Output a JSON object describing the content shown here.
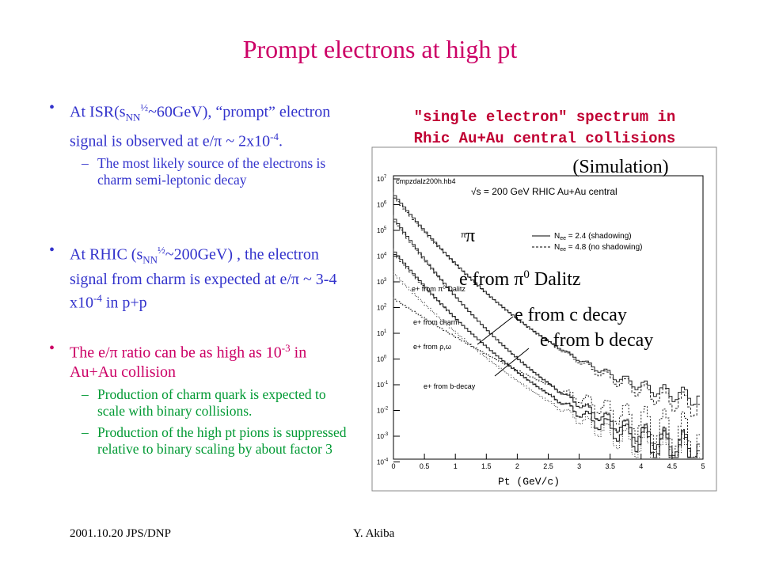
{
  "header": {
    "title": "Prompt electrons at high pt"
  },
  "bullets": [
    {
      "text": [
        "At ISR(s",
        "NN",
        "½",
        "~60GeV), “prompt” electron signal is observed at e/π ~ 2x10",
        "-4",
        "."
      ],
      "sub": [
        "The most likely source of the electrons is charm semi-leptonic decay"
      ]
    },
    {
      "text": [
        "At RHIC (s",
        "NN",
        "½",
        "~200GeV) , the electron signal from charm is expected at e/π ~ 3-4 x10",
        "-4",
        " in p+p"
      ]
    },
    {
      "text": [
        "The e/π ratio can be as high as 10",
        "-3",
        " in Au+Au collision"
      ],
      "sub": [
        "Production of charm quark is expected to scale with binary collisions.",
        "Production of the high pt pions is suppressed relative to  binary scaling by about factor 3"
      ]
    }
  ],
  "figure": {
    "title": [
      "\"single electron\" spectrum in",
      "Rhic Au+Au central collisions"
    ],
    "note": "(Simulation)",
    "file": "cmpzdalz200h.hb4",
    "energy": "√s = 200 GeV RHIC Au+Au central",
    "legend": [
      [
        "N",
        "ee",
        " = 2.4 (shadowing)"
      ],
      [
        "N",
        "ee",
        " = 4.8 (no shadowing)"
      ]
    ],
    "curve_labels": {
      "pi": "π",
      "dalitz": [
        "e+ from π",
        "0",
        " Dalitz"
      ],
      "charm": "e+ from charm",
      "rho": "e+ from ρ,ω",
      "bottom": "e+ from b-decay"
    },
    "x_label": "Pt (GeV/c)",
    "xticks": [
      "0",
      "0.5",
      "1",
      "1.5",
      "2",
      "2.5",
      "3",
      "3.5",
      "4",
      "4.5",
      "5"
    ],
    "ytick_base": "10",
    "ytick_exps": [
      "7",
      "6",
      "5",
      "4",
      "3",
      "2",
      "1",
      "0",
      "-1",
      "-2",
      "-3",
      "-4"
    ],
    "overlay": {
      "pi": "π",
      "dalitz": [
        "e from π",
        "0",
        " Dalitz"
      ],
      "charm": "e from c decay",
      "bottom": "e from b decay"
    }
  },
  "footer": {
    "left": "2001.10.20 JPS/DNP",
    "right": "Y. Akiba"
  }
}
